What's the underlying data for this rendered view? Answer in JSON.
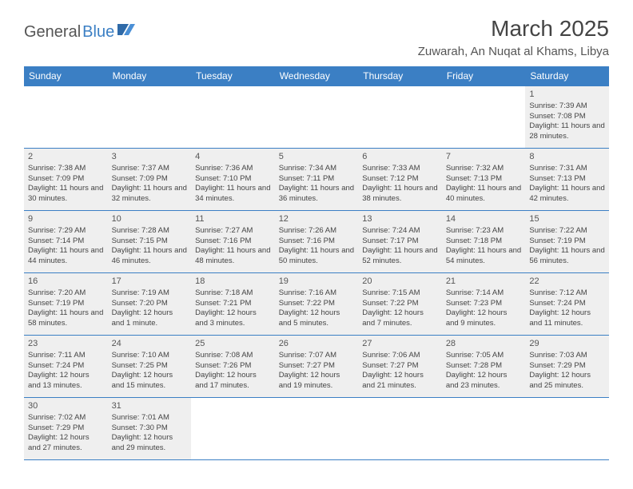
{
  "logo": {
    "part1": "General",
    "part2": "Blue"
  },
  "title": "March 2025",
  "location": "Zuwarah, An Nuqat al Khams, Libya",
  "colors": {
    "header_bg": "#3b7fc4",
    "header_text": "#ffffff",
    "border": "#3b7fc4",
    "shade": "#efefef",
    "text": "#444444"
  },
  "day_headers": [
    "Sunday",
    "Monday",
    "Tuesday",
    "Wednesday",
    "Thursday",
    "Friday",
    "Saturday"
  ],
  "weeks": [
    [
      null,
      null,
      null,
      null,
      null,
      null,
      {
        "n": "1",
        "sr": "7:39 AM",
        "ss": "7:08 PM",
        "dl": "11 hours and 28 minutes."
      }
    ],
    [
      {
        "n": "2",
        "sr": "7:38 AM",
        "ss": "7:09 PM",
        "dl": "11 hours and 30 minutes."
      },
      {
        "n": "3",
        "sr": "7:37 AM",
        "ss": "7:09 PM",
        "dl": "11 hours and 32 minutes."
      },
      {
        "n": "4",
        "sr": "7:36 AM",
        "ss": "7:10 PM",
        "dl": "11 hours and 34 minutes."
      },
      {
        "n": "5",
        "sr": "7:34 AM",
        "ss": "7:11 PM",
        "dl": "11 hours and 36 minutes."
      },
      {
        "n": "6",
        "sr": "7:33 AM",
        "ss": "7:12 PM",
        "dl": "11 hours and 38 minutes."
      },
      {
        "n": "7",
        "sr": "7:32 AM",
        "ss": "7:13 PM",
        "dl": "11 hours and 40 minutes."
      },
      {
        "n": "8",
        "sr": "7:31 AM",
        "ss": "7:13 PM",
        "dl": "11 hours and 42 minutes."
      }
    ],
    [
      {
        "n": "9",
        "sr": "7:29 AM",
        "ss": "7:14 PM",
        "dl": "11 hours and 44 minutes."
      },
      {
        "n": "10",
        "sr": "7:28 AM",
        "ss": "7:15 PM",
        "dl": "11 hours and 46 minutes."
      },
      {
        "n": "11",
        "sr": "7:27 AM",
        "ss": "7:16 PM",
        "dl": "11 hours and 48 minutes."
      },
      {
        "n": "12",
        "sr": "7:26 AM",
        "ss": "7:16 PM",
        "dl": "11 hours and 50 minutes."
      },
      {
        "n": "13",
        "sr": "7:24 AM",
        "ss": "7:17 PM",
        "dl": "11 hours and 52 minutes."
      },
      {
        "n": "14",
        "sr": "7:23 AM",
        "ss": "7:18 PM",
        "dl": "11 hours and 54 minutes."
      },
      {
        "n": "15",
        "sr": "7:22 AM",
        "ss": "7:19 PM",
        "dl": "11 hours and 56 minutes."
      }
    ],
    [
      {
        "n": "16",
        "sr": "7:20 AM",
        "ss": "7:19 PM",
        "dl": "11 hours and 58 minutes."
      },
      {
        "n": "17",
        "sr": "7:19 AM",
        "ss": "7:20 PM",
        "dl": "12 hours and 1 minute."
      },
      {
        "n": "18",
        "sr": "7:18 AM",
        "ss": "7:21 PM",
        "dl": "12 hours and 3 minutes."
      },
      {
        "n": "19",
        "sr": "7:16 AM",
        "ss": "7:22 PM",
        "dl": "12 hours and 5 minutes."
      },
      {
        "n": "20",
        "sr": "7:15 AM",
        "ss": "7:22 PM",
        "dl": "12 hours and 7 minutes."
      },
      {
        "n": "21",
        "sr": "7:14 AM",
        "ss": "7:23 PM",
        "dl": "12 hours and 9 minutes."
      },
      {
        "n": "22",
        "sr": "7:12 AM",
        "ss": "7:24 PM",
        "dl": "12 hours and 11 minutes."
      }
    ],
    [
      {
        "n": "23",
        "sr": "7:11 AM",
        "ss": "7:24 PM",
        "dl": "12 hours and 13 minutes."
      },
      {
        "n": "24",
        "sr": "7:10 AM",
        "ss": "7:25 PM",
        "dl": "12 hours and 15 minutes."
      },
      {
        "n": "25",
        "sr": "7:08 AM",
        "ss": "7:26 PM",
        "dl": "12 hours and 17 minutes."
      },
      {
        "n": "26",
        "sr": "7:07 AM",
        "ss": "7:27 PM",
        "dl": "12 hours and 19 minutes."
      },
      {
        "n": "27",
        "sr": "7:06 AM",
        "ss": "7:27 PM",
        "dl": "12 hours and 21 minutes."
      },
      {
        "n": "28",
        "sr": "7:05 AM",
        "ss": "7:28 PM",
        "dl": "12 hours and 23 minutes."
      },
      {
        "n": "29",
        "sr": "7:03 AM",
        "ss": "7:29 PM",
        "dl": "12 hours and 25 minutes."
      }
    ],
    [
      {
        "n": "30",
        "sr": "7:02 AM",
        "ss": "7:29 PM",
        "dl": "12 hours and 27 minutes."
      },
      {
        "n": "31",
        "sr": "7:01 AM",
        "ss": "7:30 PM",
        "dl": "12 hours and 29 minutes."
      },
      null,
      null,
      null,
      null,
      null
    ]
  ],
  "labels": {
    "sunrise": "Sunrise: ",
    "sunset": "Sunset: ",
    "daylight": "Daylight: "
  }
}
